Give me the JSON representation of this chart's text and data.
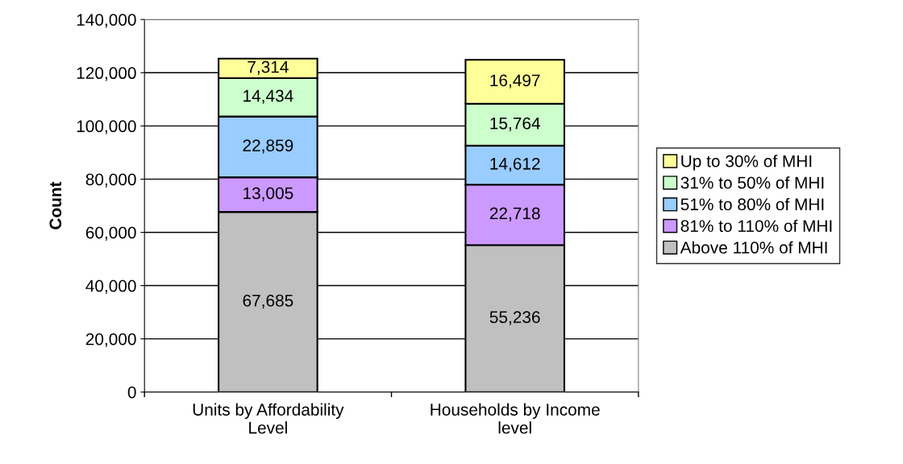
{
  "chart_data": {
    "type": "bar",
    "stacked": true,
    "ylabel": "Count",
    "categories": [
      "Units by Affordability Level",
      "Households by Income level"
    ],
    "series": [
      {
        "name": "Above 110% of MHI",
        "color": "#c0c0c0",
        "values": [
          67685,
          55236
        ],
        "value_labels": [
          "67,685",
          "55,236"
        ]
      },
      {
        "name": "81% to 110% of MHI",
        "color": "#cc99ff",
        "values": [
          13005,
          22718
        ],
        "value_labels": [
          "13,005",
          "22,718"
        ]
      },
      {
        "name": "51% to 80% of MHI",
        "color": "#99ccff",
        "values": [
          22859,
          14612
        ],
        "value_labels": [
          "22,859",
          "14,612"
        ]
      },
      {
        "name": "31% to 50% of MHI",
        "color": "#ccffcc",
        "values": [
          14434,
          15764
        ],
        "value_labels": [
          "14,434",
          "15,764"
        ]
      },
      {
        "name": "Up to 30% of MHI",
        "color": "#ffff99",
        "values": [
          7314,
          16497
        ],
        "value_labels": [
          "7,314",
          "16,497"
        ]
      }
    ],
    "ylim": [
      0,
      140000
    ],
    "yticks": [
      {
        "value": 0,
        "label": "0"
      },
      {
        "value": 20000,
        "label": "20,000"
      },
      {
        "value": 40000,
        "label": "40,000"
      },
      {
        "value": 60000,
        "label": "60,000"
      },
      {
        "value": 80000,
        "label": "80,000"
      },
      {
        "value": 100000,
        "label": "100,000"
      },
      {
        "value": 120000,
        "label": "120,000"
      },
      {
        "value": 140000,
        "label": "140,000"
      }
    ],
    "grid": "y",
    "legend": "right"
  }
}
